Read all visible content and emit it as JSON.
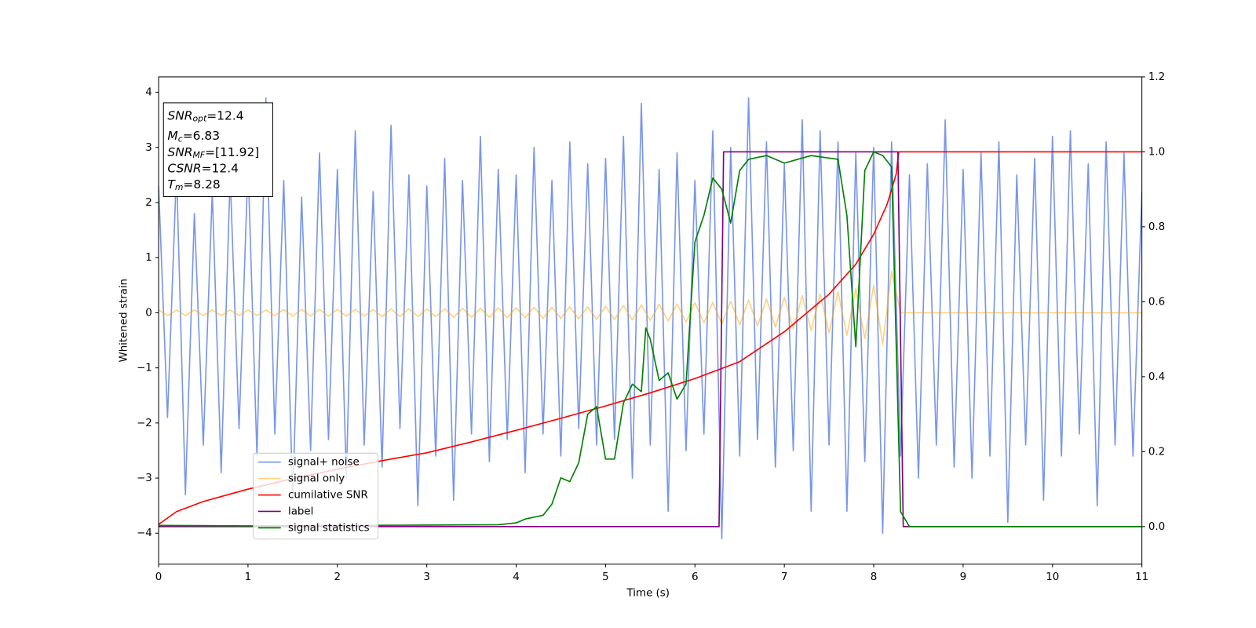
{
  "chart_data": {
    "type": "line",
    "xlabel": "Time (s)",
    "ylabel": "Whitened strain",
    "xlim": [
      0,
      11
    ],
    "ylim": [
      -4.56,
      4.28
    ],
    "y2lim": [
      -0.1,
      1.2
    ],
    "xticks": [
      0,
      1,
      2,
      3,
      4,
      5,
      6,
      7,
      8,
      9,
      10,
      11
    ],
    "yticks": [
      {
        "value": -4,
        "label": "−4"
      },
      {
        "value": -3,
        "label": "−3"
      },
      {
        "value": -2,
        "label": "−2"
      },
      {
        "value": -1,
        "label": "−1"
      },
      0,
      1,
      2,
      3,
      4
    ],
    "y2ticks": [
      {
        "value": 0,
        "label": "0.0"
      },
      0.2,
      0.4,
      0.6,
      0.8,
      {
        "value": 1,
        "label": "1.0"
      },
      1.2
    ],
    "legend": "lower left",
    "annotations": [
      {
        "name": "SNR",
        "sub": "opt",
        "text": "=12.4"
      },
      {
        "name": "M",
        "sub": "c",
        "text": "=6.83"
      },
      {
        "name": "SNR",
        "sub": "MF",
        "text": "=[11.92]"
      },
      {
        "name": "CSNR",
        "text": "=12.4"
      },
      {
        "name": "T",
        "sub": "m",
        "text": "=8.28"
      }
    ],
    "series": [
      {
        "name": "signal+ noise",
        "color": "#4169e1",
        "alpha": 0.7,
        "x": [
          0,
          0.1,
          0.2,
          0.3,
          0.4,
          0.5,
          0.6,
          0.7,
          0.8,
          0.9,
          1,
          1.1,
          1.2,
          1.3,
          1.4,
          1.5,
          1.6,
          1.7,
          1.8,
          1.9,
          2,
          2.1,
          2.2,
          2.3,
          2.4,
          2.5,
          2.6,
          2.7,
          2.8,
          2.9,
          3,
          3.1,
          3.2,
          3.3,
          3.4,
          3.5,
          3.6,
          3.7,
          3.8,
          3.9,
          4,
          4.1,
          4.2,
          4.3,
          4.4,
          4.5,
          4.6,
          4.7,
          4.8,
          4.9,
          5,
          5.1,
          5.2,
          5.3,
          5.4,
          5.5,
          5.6,
          5.7,
          5.8,
          5.9,
          6,
          6.1,
          6.2,
          6.3,
          6.4,
          6.5,
          6.6,
          6.7,
          6.8,
          6.9,
          7,
          7.1,
          7.2,
          7.3,
          7.4,
          7.5,
          7.6,
          7.7,
          7.8,
          7.9,
          8,
          8.1,
          8.2,
          8.3,
          8.4,
          8.5,
          8.6,
          8.7,
          8.8,
          8.9,
          9,
          9.1,
          9.2,
          9.3,
          9.4,
          9.5,
          9.6,
          9.7,
          9.8,
          9.9,
          10,
          10.1,
          10.2,
          10.3,
          10.4,
          10.5,
          10.6,
          10.7,
          10.8,
          10.9,
          11
        ],
        "values": [
          2.3,
          -1.9,
          2.6,
          -3.3,
          1.8,
          -2.4,
          2.2,
          -2.9,
          2.5,
          -2.1,
          2.7,
          -2.6,
          3.9,
          -2.2,
          2.4,
          -3.4,
          2.1,
          -2.5,
          2.9,
          -2.3,
          2.6,
          -3.0,
          3.3,
          -2.4,
          2.2,
          -2.8,
          3.4,
          -2.1,
          2.5,
          -3.5,
          2.3,
          -2.6,
          2.8,
          -3.4,
          2.4,
          -2.2,
          3.2,
          -2.7,
          2.6,
          -2.3,
          2.5,
          -2.9,
          3.0,
          -2.2,
          2.4,
          -2.6,
          3.1,
          -2.1,
          2.7,
          -2.4,
          2.8,
          -2.3,
          3.2,
          -3.0,
          3.8,
          -2.4,
          2.6,
          -3.6,
          2.9,
          -2.5,
          2.4,
          -2.2,
          3.3,
          -4.1,
          3.0,
          -2.6,
          3.9,
          -2.3,
          3.1,
          -2.8,
          2.7,
          -2.5,
          3.5,
          -3.6,
          3.3,
          -2.4,
          3.1,
          -3.6,
          2.9,
          -2.7,
          3.0,
          -4.0,
          3.1,
          -2.6,
          2.5,
          -3.0,
          2.7,
          -2.4,
          3.5,
          -2.8,
          2.6,
          -3.0,
          2.9,
          -2.6,
          3.1,
          -3.8,
          2.5,
          -2.4,
          2.8,
          -3.4,
          3.2,
          -2.6,
          3.3,
          -2.2,
          2.7,
          -3.5,
          3.1,
          -2.4,
          2.9,
          -2.6,
          2.2
        ]
      },
      {
        "name": "signal only",
        "color": "#ffa500",
        "alpha": 0.5,
        "x": [
          0,
          0.1,
          0.2,
          0.3,
          0.4,
          0.5,
          0.6,
          0.7,
          0.8,
          0.9,
          1,
          1.1,
          1.2,
          1.3,
          1.4,
          1.5,
          1.6,
          1.7,
          1.8,
          1.9,
          2,
          2.1,
          2.2,
          2.3,
          2.4,
          2.5,
          2.6,
          2.7,
          2.8,
          2.9,
          3,
          3.1,
          3.2,
          3.3,
          3.4,
          3.5,
          3.6,
          3.7,
          3.8,
          3.9,
          4,
          4.1,
          4.2,
          4.3,
          4.4,
          4.5,
          4.6,
          4.7,
          4.8,
          4.9,
          5,
          5.1,
          5.2,
          5.3,
          5.4,
          5.5,
          5.6,
          5.7,
          5.8,
          5.9,
          6,
          6.1,
          6.2,
          6.3,
          6.4,
          6.5,
          6.6,
          6.7,
          6.8,
          6.9,
          7,
          7.1,
          7.2,
          7.3,
          7.4,
          7.5,
          7.6,
          7.7,
          7.8,
          7.9,
          8,
          8.1,
          8.2,
          8.3,
          8.4,
          8.5,
          8.6,
          8.7,
          8.8,
          8.9,
          9,
          9.1,
          9.2,
          9.3,
          9.4,
          9.5,
          9.6,
          9.7,
          9.8,
          9.9,
          10,
          10.1,
          10.2,
          10.3,
          10.4,
          10.5,
          10.6,
          10.7,
          10.8,
          10.9,
          11
        ],
        "values": [
          0.05,
          -0.05,
          0.05,
          -0.05,
          0.05,
          -0.05,
          0.05,
          -0.05,
          0.05,
          -0.05,
          0.05,
          -0.05,
          0.05,
          -0.05,
          0.06,
          -0.06,
          0.06,
          -0.06,
          0.06,
          -0.06,
          0.06,
          -0.06,
          0.06,
          -0.06,
          0.06,
          -0.07,
          0.07,
          -0.07,
          0.07,
          -0.07,
          0.07,
          -0.07,
          0.07,
          -0.08,
          0.08,
          -0.08,
          0.08,
          -0.08,
          0.09,
          -0.09,
          0.09,
          -0.09,
          0.1,
          -0.1,
          0.1,
          -0.1,
          0.11,
          -0.11,
          0.11,
          -0.12,
          0.12,
          -0.12,
          0.13,
          -0.13,
          0.14,
          -0.14,
          0.15,
          -0.15,
          0.16,
          -0.17,
          0.18,
          -0.18,
          0.19,
          -0.2,
          0.21,
          -0.22,
          0.23,
          -0.24,
          0.25,
          -0.26,
          0.28,
          -0.29,
          0.31,
          -0.32,
          0.34,
          -0.36,
          0.38,
          -0.41,
          0.44,
          -0.47,
          0.5,
          -0.57,
          0.75,
          0,
          0,
          0,
          0,
          0,
          0,
          0,
          0,
          0,
          0,
          0,
          0,
          0,
          0,
          0,
          0,
          0,
          0,
          0,
          0,
          0,
          0,
          0,
          0,
          0,
          0,
          0,
          0
        ]
      },
      {
        "name": "cumilative SNR",
        "color": "#ff0000",
        "axis": "y2",
        "x": [
          0,
          0.2,
          0.5,
          1,
          1.5,
          2,
          2.5,
          3,
          3.5,
          4,
          4.5,
          5,
          5.5,
          6,
          6.5,
          7,
          7.5,
          7.8,
          8,
          8.15,
          8.25,
          8.28,
          11
        ],
        "values": [
          0.006,
          0.04,
          0.067,
          0.1,
          0.128,
          0.153,
          0.176,
          0.197,
          0.226,
          0.257,
          0.289,
          0.322,
          0.357,
          0.395,
          0.44,
          0.52,
          0.62,
          0.7,
          0.78,
          0.86,
          0.94,
          1.0,
          1.0
        ]
      },
      {
        "name": "label",
        "color": "#800080",
        "axis": "y2",
        "x": [
          0,
          6.27,
          6.32,
          8.27,
          8.33,
          11
        ],
        "values": [
          0,
          0,
          1,
          1,
          0,
          0
        ]
      },
      {
        "name": "signal statistics",
        "color": "#008000",
        "axis": "y2",
        "x": [
          0,
          1,
          2,
          3,
          3.8,
          4,
          4.1,
          4.2,
          4.3,
          4.4,
          4.5,
          4.6,
          4.7,
          4.8,
          4.9,
          5.0,
          5.1,
          5.2,
          5.3,
          5.4,
          5.45,
          5.5,
          5.6,
          5.7,
          5.8,
          5.9,
          6.0,
          6.1,
          6.2,
          6.3,
          6.4,
          6.5,
          6.6,
          6.8,
          7.0,
          7.3,
          7.6,
          7.7,
          7.8,
          7.9,
          8.0,
          8.1,
          8.2,
          8.3,
          8.4,
          11
        ],
        "values": [
          0.003,
          0.002,
          0.003,
          0.004,
          0.005,
          0.01,
          0.02,
          0.025,
          0.03,
          0.06,
          0.13,
          0.12,
          0.17,
          0.3,
          0.32,
          0.18,
          0.18,
          0.33,
          0.38,
          0.36,
          0.53,
          0.5,
          0.39,
          0.41,
          0.34,
          0.38,
          0.76,
          0.83,
          0.93,
          0.9,
          0.81,
          0.95,
          0.98,
          0.99,
          0.97,
          0.99,
          0.98,
          0.83,
          0.48,
          0.95,
          1.0,
          0.99,
          0.96,
          0.04,
          0.0,
          0.0
        ]
      }
    ]
  }
}
